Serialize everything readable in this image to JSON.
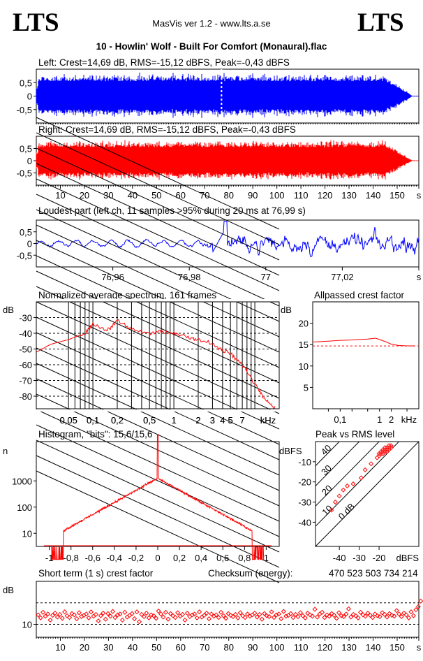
{
  "header": {
    "logo_left": "LTS",
    "logo_right": "LTS",
    "app_title": "MasVis ver 1.2 - www.lts.a.se",
    "file_title": "10 - Howlin' Wolf - Built For Comfort (Monaural).flac"
  },
  "colors": {
    "left": "#0000ff",
    "right": "#ff0000",
    "grid": "#000000"
  },
  "chart_data": [
    {
      "id": "left_wave",
      "type": "line",
      "title": "Left: Crest=14,69 dB, RMS=-15,12 dBFS, Peak=-0,43 dBFS",
      "ylim": [
        -1,
        1
      ],
      "yticks": [
        "0,5",
        "0",
        "-0,5"
      ],
      "ytick_values": [
        0.5,
        0,
        -0.5
      ],
      "xlim": [
        0,
        159
      ],
      "series": [
        {
          "values": []
        }
      ]
    },
    {
      "id": "right_wave",
      "type": "line",
      "title": "Right: Crest=14,69 dB, RMS=-15,12 dBFS, Peak=-0,43 dBFS",
      "ylim": [
        -1,
        1
      ],
      "yticks": [
        "0,5",
        "0",
        "-0,5"
      ],
      "ytick_values": [
        0.5,
        0,
        -0.5
      ],
      "xlim": [
        0,
        159
      ],
      "xticks": [
        "10",
        "20",
        "30",
        "40",
        "50",
        "60",
        "70",
        "80",
        "90",
        "100",
        "110",
        "120",
        "130",
        "140",
        "150",
        "s"
      ],
      "xtick_values": [
        10,
        20,
        30,
        40,
        50,
        60,
        70,
        80,
        90,
        100,
        110,
        120,
        130,
        140,
        150,
        159
      ],
      "series": [
        {
          "values": []
        }
      ]
    },
    {
      "id": "loudest",
      "type": "line",
      "title": "Loudest part (left  ch, 11 samples >95% during 20 ms at 76,99 s)",
      "ylim": [
        -1,
        1
      ],
      "yticks": [
        "0,5",
        "0",
        "-0,5"
      ],
      "ytick_values": [
        0.5,
        0,
        -0.5
      ],
      "xlim": [
        76.94,
        77.04
      ],
      "xticks": [
        "76,96",
        "76,98",
        "77",
        "77,02",
        "s"
      ],
      "xtick_values": [
        76.96,
        76.98,
        77.0,
        77.02,
        77.04
      ]
    },
    {
      "id": "spectrum",
      "type": "line",
      "title": "Normalized average spectrum, 161 frames",
      "ylabel": "dB",
      "xlabel": "kHz",
      "yticks": [
        "-30",
        "-40",
        "-50",
        "-60",
        "-70",
        "-80"
      ],
      "ytick_values": [
        -30,
        -40,
        -50,
        -60,
        -70,
        -80
      ],
      "ylim": [
        -88,
        -20
      ],
      "xticks": [
        "0,05",
        "0,1",
        "0,2",
        "0,5",
        "1",
        "2",
        "3",
        "4",
        "5",
        "7",
        "kHz"
      ],
      "xtick_values": [
        0.05,
        0.1,
        0.2,
        0.5,
        1,
        2,
        3,
        4,
        5,
        7,
        15
      ],
      "series": [
        {
          "name": "",
          "x_khz": [
            0.02,
            0.03,
            0.05,
            0.08,
            0.1,
            0.15,
            0.2,
            0.3,
            0.5,
            0.7,
            1,
            1.5,
            2,
            3,
            4,
            5,
            6,
            7,
            8,
            10,
            12,
            15,
            18
          ],
          "db": [
            -52,
            -47,
            -44,
            -40,
            -34,
            -38,
            -32,
            -38,
            -40,
            -39,
            -40,
            -42,
            -44,
            -47,
            -51,
            -53,
            -57,
            -60,
            -64,
            -72,
            -78,
            -84,
            -88
          ]
        }
      ]
    },
    {
      "id": "crest",
      "type": "line",
      "title": "Allpassed crest factor",
      "ylabel": "dB",
      "xlabel": "kHz",
      "yticks": [
        "20",
        "15",
        "10",
        "5"
      ],
      "ytick_values": [
        20,
        15,
        10,
        5
      ],
      "ylim": [
        0,
        25
      ],
      "xticks": [
        "0,1",
        "1",
        "2",
        "kHz"
      ],
      "xtick_values": [
        0.1,
        1,
        2,
        5
      ],
      "series": [
        {
          "x_khz": [
            0.02,
            0.05,
            0.1,
            0.2,
            0.5,
            0.8,
            1,
            1.5,
            2,
            3,
            5,
            8
          ],
          "db": [
            15.6,
            15.8,
            16.0,
            16.1,
            16.3,
            16.5,
            16.2,
            15.6,
            15.1,
            14.8,
            14.7,
            14.7
          ]
        }
      ],
      "reference": 14.69
    },
    {
      "id": "histogram",
      "type": "line",
      "title": "Histogram, \"bits\": 15,6/15,6",
      "ylabel": "n",
      "yticks": [
        "1000",
        "100",
        "10"
      ],
      "ytick_values": [
        1000,
        100,
        10
      ],
      "xticks": [
        "-1",
        "-0,8",
        "-0,6",
        "-0,4",
        "-0,2",
        "0",
        "0,2",
        "0,4",
        "0,6",
        "0,8",
        "1"
      ],
      "xtick_values": [
        -1,
        -0.8,
        -0.6,
        -0.4,
        -0.2,
        0,
        0.2,
        0.4,
        0.6,
        0.8,
        1
      ]
    },
    {
      "id": "peak_rms",
      "type": "scatter",
      "title": "Peak vs RMS level",
      "ylabel": "dBFS",
      "xlabel": "dBFS",
      "yticks": [
        "-10",
        "-20",
        "-30",
        "-40"
      ],
      "ytick_values": [
        -10,
        -20,
        -30,
        -40
      ],
      "xticks": [
        "-40",
        "-30",
        "-20"
      ],
      "xtick_values": [
        -40,
        -30,
        -20
      ],
      "diagonal_labels": [
        "40",
        "30",
        "20",
        "10",
        "0 dB"
      ],
      "points": [
        [
          -44,
          -34
        ],
        [
          -42,
          -30
        ],
        [
          -40,
          -27
        ],
        [
          -38,
          -24
        ],
        [
          -36,
          -22
        ],
        [
          -33,
          -21
        ],
        [
          -29,
          -18
        ],
        [
          -27,
          -14
        ],
        [
          -24,
          -11
        ],
        [
          -21,
          -8
        ],
        [
          -20,
          -7
        ],
        [
          -19,
          -6
        ],
        [
          -18,
          -5
        ],
        [
          -17,
          -4
        ],
        [
          -16,
          -4
        ],
        [
          -15,
          -3
        ],
        [
          -16,
          -3
        ],
        [
          -17,
          -5
        ],
        [
          -18,
          -4
        ],
        [
          -19,
          -5
        ],
        [
          -15,
          -2
        ],
        [
          -14,
          -2
        ],
        [
          -17,
          -3
        ],
        [
          -16,
          -5
        ],
        [
          -18,
          -6
        ],
        [
          -20,
          -6
        ],
        [
          -15,
          -4
        ],
        [
          -14,
          -3
        ]
      ]
    },
    {
      "id": "short_crest",
      "type": "scatter",
      "title": "Short term (1 s) crest factor",
      "checksum_label": "Checksum (energy):",
      "checksum_value": "470 523 503 734 214",
      "ylabel": "dB",
      "yticks": [
        "10"
      ],
      "ytick_values": [
        10
      ],
      "xlim": [
        0,
        159
      ],
      "xticks": [
        "10",
        "20",
        "30",
        "40",
        "50",
        "60",
        "70",
        "80",
        "90",
        "100",
        "110",
        "120",
        "130",
        "140",
        "150",
        "s"
      ],
      "xtick_values": [
        10,
        20,
        30,
        40,
        50,
        60,
        70,
        80,
        90,
        100,
        110,
        120,
        130,
        140,
        150,
        159
      ],
      "values": [
        12.2,
        11.5,
        12.8,
        11.9,
        12.4,
        11.0,
        12.1,
        12.6,
        11.7,
        12.3,
        11.4,
        12.9,
        12.0,
        11.6,
        12.5,
        12.2,
        11.3,
        12.7,
        11.8,
        12.1,
        12.4,
        11.5,
        12.9,
        11.9,
        12.3,
        10.8,
        12.0,
        12.6,
        11.2,
        12.5,
        11.9,
        13.0,
        11.6,
        12.2,
        12.4,
        11.0,
        12.8,
        11.7,
        12.1,
        12.5,
        11.3,
        12.9,
        10.6,
        12.3,
        11.8,
        12.6,
        11.5,
        12.2,
        12.0,
        11.4,
        13.1,
        12.4,
        11.7,
        12.8,
        11.2,
        12.5,
        12.0,
        11.6,
        12.7,
        11.9,
        12.3,
        11.0,
        12.6,
        11.8,
        12.2,
        12.4,
        11.5,
        12.9,
        11.7,
        12.1,
        12.6,
        11.3,
        12.4,
        11.9,
        12.2,
        11.6,
        12.8,
        12.0,
        11.4,
        12.5,
        12.1,
        11.8,
        12.3,
        11.5,
        12.7,
        12.0,
        11.6,
        12.4,
        11.9,
        12.2,
        12.6,
        11.7,
        12.3,
        11.2,
        12.5,
        12.0,
        11.8,
        12.9,
        11.6,
        12.2,
        12.4,
        11.3,
        13.0,
        11.9,
        12.1,
        12.5,
        11.6,
        12.3,
        11.8,
        12.7,
        12.0,
        11.5,
        12.6,
        12.2,
        11.9,
        13.5,
        11.7,
        12.4,
        12.8,
        11.6,
        12.2,
        11.9,
        12.5,
        12.1,
        11.4,
        12.7,
        12.0,
        11.8,
        12.4,
        13.6,
        11.7,
        12.3,
        12.0,
        11.5,
        12.8,
        12.2,
        11.9,
        12.6,
        12.1,
        11.6,
        12.4,
        12.0,
        11.8,
        12.7,
        12.3,
        11.7,
        12.5,
        12.1,
        11.9,
        13.2,
        12.4,
        11.8,
        12.6,
        12.2,
        11.5,
        12.9,
        12.0,
        13.4,
        14.1,
        15.4
      ]
    }
  ]
}
